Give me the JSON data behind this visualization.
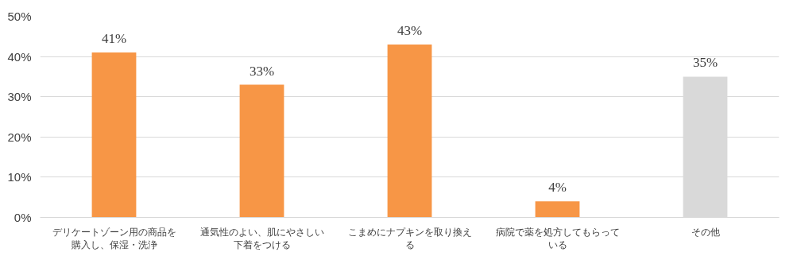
{
  "chart_data": {
    "type": "bar",
    "categories": [
      "デリケートゾーン用の商品を購入し、保湿・洗浄",
      "通気性のよい、肌にやさしい下着をつける",
      "こまめにナプキンを取り換える",
      "病院で薬を処方してもらっている",
      "その他"
    ],
    "values": [
      41,
      33,
      43,
      4,
      35
    ],
    "value_labels": [
      "41%",
      "33%",
      "43%",
      "4%",
      "35%"
    ],
    "colors": [
      "#f79646",
      "#f79646",
      "#f79646",
      "#f79646",
      "#d9d9d9"
    ],
    "ylim": [
      0,
      50
    ],
    "yticks": [
      {
        "value": 0,
        "label": "0%"
      },
      {
        "value": 10,
        "label": "10%"
      },
      {
        "value": 20,
        "label": "20%"
      },
      {
        "value": 30,
        "label": "30%"
      },
      {
        "value": 40,
        "label": "40%"
      },
      {
        "value": 50,
        "label": "50%"
      }
    ],
    "grid": "y"
  }
}
